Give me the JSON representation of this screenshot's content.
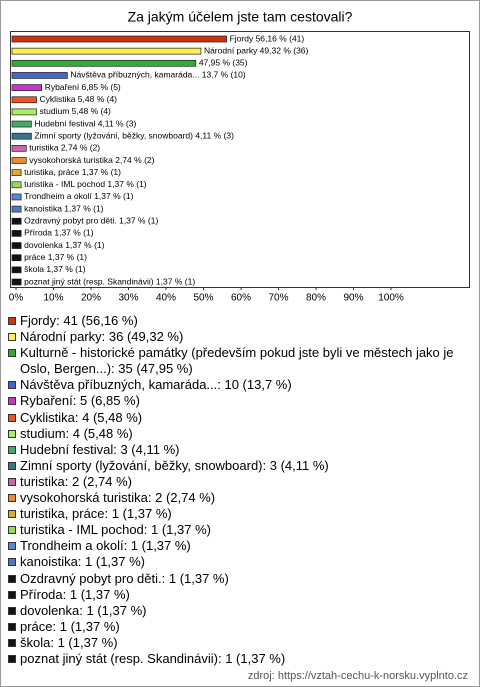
{
  "chart_data": {
    "type": "bar",
    "orientation": "horizontal",
    "title": "Za jakým účelem jste tam cestovali?",
    "categories": [
      "Fjordy",
      "Národní parky",
      "Kulturně - historické památky (především pokud jste byli ve městech jako je Oslo, Bergen...)",
      "Návštěva příbuzných, kamaráda...",
      "Rybaření",
      "Cyklistika",
      "studium",
      "Hudební festival",
      "Zimní sporty (lyžování, běžky, snowboard)",
      "turistika",
      "vysokohorská turistika",
      "turistika, práce",
      "turistika - IML pochod",
      "Trondheim a okolí",
      "kanoistika",
      "Ozdravný pobyt pro děti.",
      "Příroda",
      "dovolenka",
      "práce",
      "škola",
      "poznat jiný stát (resp. Skandinávii)"
    ],
    "values": [
      56.16,
      49.32,
      47.95,
      13.7,
      6.85,
      5.48,
      5.48,
      4.11,
      4.11,
      2.74,
      2.74,
      1.37,
      1.37,
      1.37,
      1.37,
      1.37,
      1.37,
      1.37,
      1.37,
      1.37,
      1.37
    ],
    "value_labels": [
      "Fjordy 56,16 % (41)",
      "Národní parky 49,32 % (36)",
      "47,95 % (35)",
      "Návštěva příbuzných, kamaráda... 13,7 % (10)",
      "Rybaření 6,85 % (5)",
      "Cyklistika 5,48 % (4)",
      "studium 5,48 % (4)",
      "Hudební festival 4,11 % (3)",
      "Zimní sporty (lyžování, běžky, snowboard) 4,11 % (3)",
      "turistika 2,74 % (2)",
      "vysokohorská turistika 2,74 % (2)",
      "turistika, práce 1,37 % (1)",
      "turistika - IML pochod 1,37 % (1)",
      "Trondheim a okolí 1,37 % (1)",
      "kanoistika 1,37 % (1)",
      "Ozdravný pobyt pro děti. 1,37 % (1)",
      "Příroda 1,37 % (1)",
      "dovolenka 1,37 % (1)",
      "práce 1,37 % (1)",
      "škola 1,37 % (1)",
      "poznat jiný stát (resp. Skandinávii) 1,37 % (1)"
    ],
    "legend_labels": [
      "Fjordy: 41 (56,16 %)",
      "Národní parky: 36 (49,32 %)",
      "Kulturně - historické památky (především pokud jste byli ve městech jako je Oslo, Bergen...): 35 (47,95 %)",
      "Návštěva příbuzných, kamaráda...: 10 (13,7 %)",
      "Rybaření: 5 (6,85 %)",
      "Cyklistika: 4 (5,48 %)",
      "studium: 4 (5,48 %)",
      "Hudební festival: 3 (4,11 %)",
      "Zimní sporty (lyžování, běžky, snowboard): 3 (4,11 %)",
      "turistika: 2 (2,74 %)",
      "vysokohorská turistika: 2 (2,74 %)",
      "turistika, práce: 1 (1,37 %)",
      "turistika - IML pochod: 1 (1,37 %)",
      "Trondheim a okolí: 1 (1,37 %)",
      "kanoistika: 1 (1,37 %)",
      "Ozdravný pobyt pro děti.: 1 (1,37 %)",
      "Příroda: 1 (1,37 %)",
      "dovolenka: 1 (1,37 %)",
      "práce: 1 (1,37 %)",
      "škola: 1 (1,37 %)",
      "poznat jiný stát (resp. Skandinávii): 1 (1,37 %)"
    ],
    "colors": [
      "#cc3311",
      "#ffee55",
      "#33aa33",
      "#4466cc",
      "#cc33cc",
      "#ee5522",
      "#aaee66",
      "#44aa66",
      "#337788",
      "#cc66aa",
      "#ee8833",
      "#ddaa33",
      "#99dd55",
      "#5588cc",
      "#5577bb",
      "#111111",
      "#111111",
      "#111111",
      "#111111",
      "#111111",
      "#111111"
    ],
    "xlim": [
      0,
      100
    ],
    "xticks": [
      {
        "value": 0,
        "label": "0%"
      },
      {
        "value": 10,
        "label": "10%"
      },
      {
        "value": 20,
        "label": "20%"
      },
      {
        "value": 30,
        "label": "30%"
      },
      {
        "value": 40,
        "label": "40%"
      },
      {
        "value": 50,
        "label": "50%"
      },
      {
        "value": 60,
        "label": "60%"
      },
      {
        "value": 70,
        "label": "70%"
      },
      {
        "value": 80,
        "label": "80%"
      },
      {
        "value": 90,
        "label": "90%"
      },
      {
        "value": 100,
        "label": "100%"
      }
    ],
    "source": "zdroj: https://vztah-cechu-k-norsku.vyplnto.cz"
  }
}
